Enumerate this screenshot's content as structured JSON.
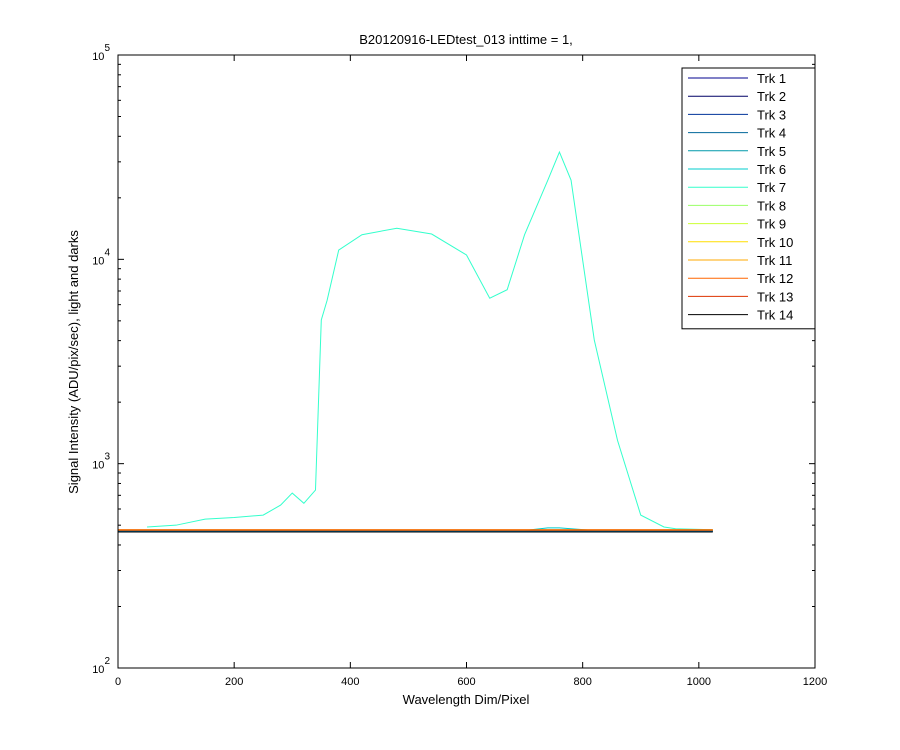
{
  "chart_data": {
    "type": "line",
    "title": "B20120916-LEDtest_013 inttime = 1,",
    "xlabel": "Wavelength Dim/Pixel",
    "ylabel": "Signal Intensity (ADU/pix/sec), light and darks",
    "log_y": true,
    "xlim": [
      0,
      1200
    ],
    "xticks": [
      0,
      200,
      400,
      600,
      800,
      1000,
      1200
    ],
    "ylim": [
      100,
      100000
    ],
    "yticks": [
      {
        "value": 100,
        "label": "10^2"
      },
      {
        "value": 1000,
        "label": "10^3"
      },
      {
        "value": 10000,
        "label": "10^4"
      },
      {
        "value": 100000,
        "label": "10^5"
      }
    ],
    "legend": "upper right",
    "x": [
      0,
      50,
      100,
      150,
      200,
      250,
      280,
      300,
      320,
      340,
      350,
      360,
      380,
      420,
      480,
      540,
      600,
      640,
      670,
      700,
      740,
      760,
      780,
      820,
      860,
      900,
      940,
      960,
      1024
    ],
    "series": [
      {
        "name": "Trk 1",
        "color": "#00008f",
        "values": [
          466,
          466,
          466,
          466,
          466,
          466,
          466,
          466,
          466,
          466,
          466,
          466,
          466,
          466,
          466,
          466,
          466,
          466,
          466,
          466,
          466,
          466,
          466,
          466,
          466,
          466,
          466,
          466,
          466
        ]
      },
      {
        "name": "Trk 2",
        "color": "#000066",
        "values": [
          467,
          467,
          467,
          467,
          467,
          467,
          467,
          467,
          467,
          467,
          467,
          467,
          467,
          467,
          467,
          467,
          467,
          467,
          467,
          467,
          467,
          467,
          467,
          467,
          467,
          467,
          467,
          467,
          467
        ]
      },
      {
        "name": "Trk 3",
        "color": "#003399",
        "values": [
          468,
          468,
          468,
          468,
          468,
          468,
          468,
          468,
          468,
          468,
          468,
          468,
          468,
          468,
          468,
          468,
          468,
          468,
          468,
          468,
          468,
          468,
          468,
          468,
          468,
          468,
          468,
          468,
          468
        ]
      },
      {
        "name": "Trk 4",
        "color": "#006699",
        "values": [
          469,
          469,
          469,
          469,
          469,
          469,
          469,
          469,
          469,
          469,
          469,
          469,
          469,
          469,
          469,
          469,
          469,
          469,
          469,
          469,
          469,
          469,
          469,
          469,
          469,
          469,
          469,
          469,
          469
        ]
      },
      {
        "name": "Trk 5",
        "color": "#0099aa",
        "values": [
          470,
          470,
          470,
          470,
          470,
          470,
          470,
          470,
          470,
          470,
          470,
          470,
          470,
          470,
          470,
          470,
          470,
          470,
          470,
          470,
          470,
          470,
          470,
          470,
          470,
          470,
          470,
          470,
          470
        ]
      },
      {
        "name": "Trk 6",
        "color": "#00cccc",
        "values": [
          471,
          471,
          471,
          471,
          471,
          471,
          471,
          471,
          471,
          471,
          471,
          471,
          471,
          471,
          471,
          471,
          471,
          471,
          471,
          471,
          485,
          485,
          480,
          471,
          471,
          471,
          471,
          471,
          471
        ]
      },
      {
        "name": "Trk 7",
        "color": "#33ffcc",
        "values": [
          null,
          490,
          500,
          535,
          545,
          560,
          627,
          718,
          640,
          743,
          5050,
          6300,
          11100,
          13200,
          14200,
          13300,
          10500,
          6450,
          7100,
          13200,
          24400,
          33500,
          24400,
          4030,
          1300,
          560,
          490,
          480,
          475
        ]
      },
      {
        "name": "Trk 8",
        "color": "#99ff66",
        "values": [
          472,
          472,
          472,
          472,
          472,
          472,
          472,
          472,
          472,
          472,
          472,
          472,
          472,
          472,
          472,
          472,
          472,
          472,
          472,
          472,
          472,
          472,
          472,
          472,
          472,
          472,
          472,
          472,
          472
        ]
      },
      {
        "name": "Trk 9",
        "color": "#ccff33",
        "values": [
          473,
          473,
          473,
          473,
          473,
          473,
          473,
          473,
          473,
          473,
          473,
          473,
          473,
          473,
          473,
          473,
          473,
          473,
          473,
          473,
          473,
          473,
          473,
          473,
          473,
          473,
          473,
          473,
          473
        ]
      },
      {
        "name": "Trk 10",
        "color": "#ffdd00",
        "values": [
          474,
          474,
          474,
          474,
          474,
          474,
          474,
          474,
          474,
          474,
          474,
          474,
          474,
          474,
          474,
          474,
          474,
          474,
          474,
          474,
          474,
          474,
          474,
          474,
          474,
          474,
          474,
          474,
          474
        ]
      },
      {
        "name": "Trk 11",
        "color": "#ffaa00",
        "values": [
          475,
          475,
          475,
          475,
          475,
          475,
          475,
          475,
          475,
          475,
          475,
          475,
          475,
          475,
          475,
          475,
          475,
          475,
          475,
          475,
          475,
          475,
          475,
          475,
          475,
          475,
          475,
          475,
          475
        ]
      },
      {
        "name": "Trk 12",
        "color": "#ff6600",
        "values": [
          474,
          474,
          474,
          474,
          474,
          474,
          474,
          474,
          474,
          474,
          474,
          474,
          474,
          474,
          474,
          474,
          474,
          474,
          474,
          474,
          474,
          474,
          474,
          474,
          474,
          474,
          474,
          474,
          474
        ]
      },
      {
        "name": "Trk 13",
        "color": "#dd3300",
        "values": [
          472,
          472,
          472,
          472,
          472,
          472,
          472,
          472,
          472,
          472,
          472,
          472,
          472,
          472,
          472,
          472,
          472,
          472,
          472,
          472,
          472,
          472,
          472,
          472,
          472,
          472,
          472,
          472,
          472
        ]
      },
      {
        "name": "Trk 14",
        "color": "#000000",
        "values": [
          463,
          463,
          463,
          463,
          463,
          463,
          463,
          463,
          463,
          463,
          463,
          463,
          463,
          463,
          463,
          463,
          463,
          463,
          463,
          463,
          463,
          463,
          463,
          463,
          463,
          463,
          463,
          463,
          463
        ]
      }
    ]
  }
}
